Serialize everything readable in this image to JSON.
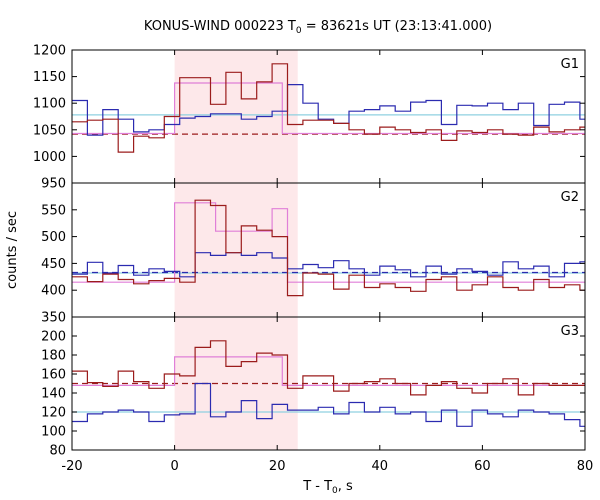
{
  "title_parts": [
    "KONUS-WIND 000223 T",
    "0",
    " = 83621s UT (23:13:41.000)"
  ],
  "y_label": "counts / sec",
  "x_label_parts": [
    "T - T",
    "0",
    ", s"
  ],
  "colors": {
    "red": "#9b1c1c",
    "blue": "#2b2bb0",
    "pink": "#e07fd8",
    "cyan": "#8fd0e0",
    "shade": "#fde8ea"
  },
  "chart_data": [
    {
      "type": "line",
      "title": "G1",
      "ylim": [
        950,
        1200
      ],
      "y_ticks": [
        950,
        1000,
        1050,
        1100,
        1150,
        1200
      ],
      "xlim": [
        -20,
        80
      ],
      "x_ticks": [
        -20,
        0,
        20,
        40,
        60,
        80
      ],
      "shaded_interval": [
        0,
        24
      ],
      "series": [
        {
          "role": "step",
          "color": "red",
          "x0": -20,
          "dx": 3,
          "values": [
            1065,
            1068,
            1070,
            1008,
            1038,
            1035,
            1075,
            1148,
            1148,
            1098,
            1158,
            1108,
            1140,
            1174,
            1060,
            1068,
            1068,
            1062,
            1050,
            1042,
            1055,
            1050,
            1045,
            1050,
            1030,
            1048,
            1045,
            1050,
            1042,
            1040,
            1055,
            1046,
            1050,
            1055
          ]
        },
        {
          "role": "step",
          "color": "blue",
          "x0": -20,
          "dx": 3,
          "values": [
            1105,
            1040,
            1088,
            1070,
            1046,
            1050,
            1060,
            1072,
            1075,
            1080,
            1080,
            1070,
            1075,
            1085,
            1135,
            1100,
            1070,
            1062,
            1085,
            1088,
            1095,
            1085,
            1102,
            1105,
            1060,
            1096,
            1095,
            1100,
            1088,
            1100,
            1058,
            1098,
            1102,
            1070
          ]
        },
        {
          "role": "step",
          "color": "pink",
          "x": [
            -20,
            0,
            0,
            21,
            21,
            80
          ],
          "y": [
            1043,
            1043,
            1138,
            1138,
            1043,
            1043
          ]
        },
        {
          "role": "dashed",
          "color": "red",
          "x": [
            -20,
            80
          ],
          "y": [
            1042,
            1042
          ]
        },
        {
          "role": "level",
          "color": "cyan",
          "x": [
            -20,
            80
          ],
          "y": [
            1078,
            1078
          ]
        }
      ]
    },
    {
      "type": "line",
      "title": "G2",
      "ylim": [
        350,
        600
      ],
      "y_ticks": [
        350,
        400,
        450,
        500,
        550
      ],
      "xlim": [
        -20,
        80
      ],
      "x_ticks": [
        -20,
        0,
        20,
        40,
        60,
        80
      ],
      "shaded_interval": [
        0,
        24
      ],
      "series": [
        {
          "role": "step",
          "color": "red",
          "x0": -20,
          "dx": 3,
          "values": [
            425,
            416,
            430,
            420,
            412,
            418,
            422,
            415,
            568,
            558,
            470,
            520,
            512,
            500,
            390,
            432,
            430,
            402,
            428,
            405,
            412,
            405,
            398,
            420,
            425,
            400,
            410,
            425,
            405,
            400,
            420,
            405,
            410,
            400
          ]
        },
        {
          "role": "step",
          "color": "blue",
          "x0": -20,
          "dx": 3,
          "values": [
            430,
            452,
            432,
            446,
            428,
            440,
            435,
            425,
            470,
            465,
            470,
            465,
            470,
            460,
            440,
            448,
            442,
            455,
            440,
            428,
            445,
            438,
            425,
            445,
            430,
            440,
            435,
            428,
            453,
            440,
            445,
            425,
            450,
            453
          ]
        },
        {
          "role": "step",
          "color": "pink",
          "x": [
            -20,
            0,
            0,
            8,
            8,
            19,
            19,
            22,
            22,
            80
          ],
          "y": [
            415,
            415,
            563,
            563,
            510,
            510,
            552,
            552,
            415,
            415
          ]
        },
        {
          "role": "dashed",
          "color": "blue",
          "x": [
            -20,
            80
          ],
          "y": [
            433,
            433
          ]
        },
        {
          "role": "level",
          "color": "cyan",
          "x": [
            -20,
            80
          ],
          "y": [
            432,
            432
          ]
        }
      ]
    },
    {
      "type": "line",
      "title": "G3",
      "ylim": [
        80,
        220
      ],
      "y_ticks": [
        80,
        100,
        120,
        140,
        160,
        180,
        200
      ],
      "xlim": [
        -20,
        80
      ],
      "x_ticks": [
        -20,
        0,
        20,
        40,
        60,
        80
      ],
      "x_tick_labels": [
        "-20",
        "0",
        "20",
        "40",
        "60",
        "80"
      ],
      "shaded_interval": [
        0,
        24
      ],
      "series": [
        {
          "role": "step",
          "color": "red",
          "x0": -20,
          "dx": 3,
          "values": [
            163,
            151,
            147,
            163,
            152,
            145,
            160,
            158,
            188,
            195,
            168,
            173,
            182,
            180,
            145,
            158,
            158,
            142,
            150,
            152,
            155,
            150,
            138,
            148,
            152,
            145,
            140,
            150,
            155,
            138,
            150,
            148,
            148,
            148
          ]
        },
        {
          "role": "step",
          "color": "blue",
          "x0": -20,
          "dx": 3,
          "values": [
            110,
            118,
            120,
            122,
            120,
            110,
            117,
            118,
            150,
            115,
            120,
            132,
            113,
            128,
            122,
            122,
            125,
            118,
            130,
            120,
            125,
            118,
            120,
            110,
            122,
            105,
            122,
            118,
            115,
            122,
            120,
            118,
            112,
            105
          ]
        },
        {
          "role": "step",
          "color": "pink",
          "x": [
            -20,
            0,
            0,
            21,
            21,
            80
          ],
          "y": [
            148,
            148,
            178,
            178,
            148,
            148
          ]
        },
        {
          "role": "dashed",
          "color": "red",
          "x": [
            -20,
            80
          ],
          "y": [
            150,
            150
          ]
        },
        {
          "role": "level",
          "color": "cyan",
          "x": [
            -20,
            80
          ],
          "y": [
            120,
            120
          ]
        }
      ]
    }
  ]
}
